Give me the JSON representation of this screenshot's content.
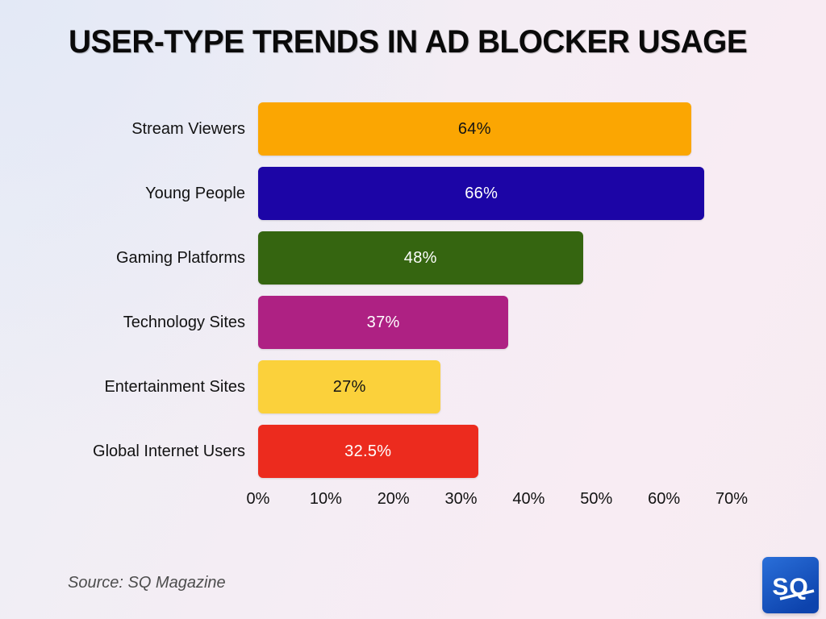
{
  "title": "USER-TYPE TRENDS IN AD BLOCKER USAGE",
  "source": "Source: SQ Magazine",
  "logo": {
    "text": "SQ"
  },
  "chart_data": {
    "type": "bar",
    "orientation": "horizontal",
    "title": "USER-TYPE TRENDS IN AD BLOCKER USAGE",
    "categories": [
      "Stream Viewers",
      "Young People",
      "Gaming Platforms",
      "Technology Sites",
      "Entertainment Sites",
      "Global Internet Users"
    ],
    "values": [
      64,
      66,
      48,
      37,
      27,
      32.5
    ],
    "value_labels": [
      "64%",
      "66%",
      "48%",
      "37%",
      "27%",
      "32.5%"
    ],
    "bar_colors": [
      "#FBA602",
      "#1C05A6",
      "#356510",
      "#AE2183",
      "#FBD13B",
      "#EC2B1E"
    ],
    "value_label_colors": [
      "#141414",
      "#FFFFFF",
      "#FFFFFF",
      "#FFFFFF",
      "#141414",
      "#FFFFFF"
    ],
    "xticks": [
      "0%",
      "10%",
      "20%",
      "30%",
      "40%",
      "50%",
      "60%",
      "70%"
    ],
    "xlim": [
      0,
      70
    ],
    "grid": false,
    "legend": false,
    "xlabel": "",
    "ylabel": ""
  }
}
